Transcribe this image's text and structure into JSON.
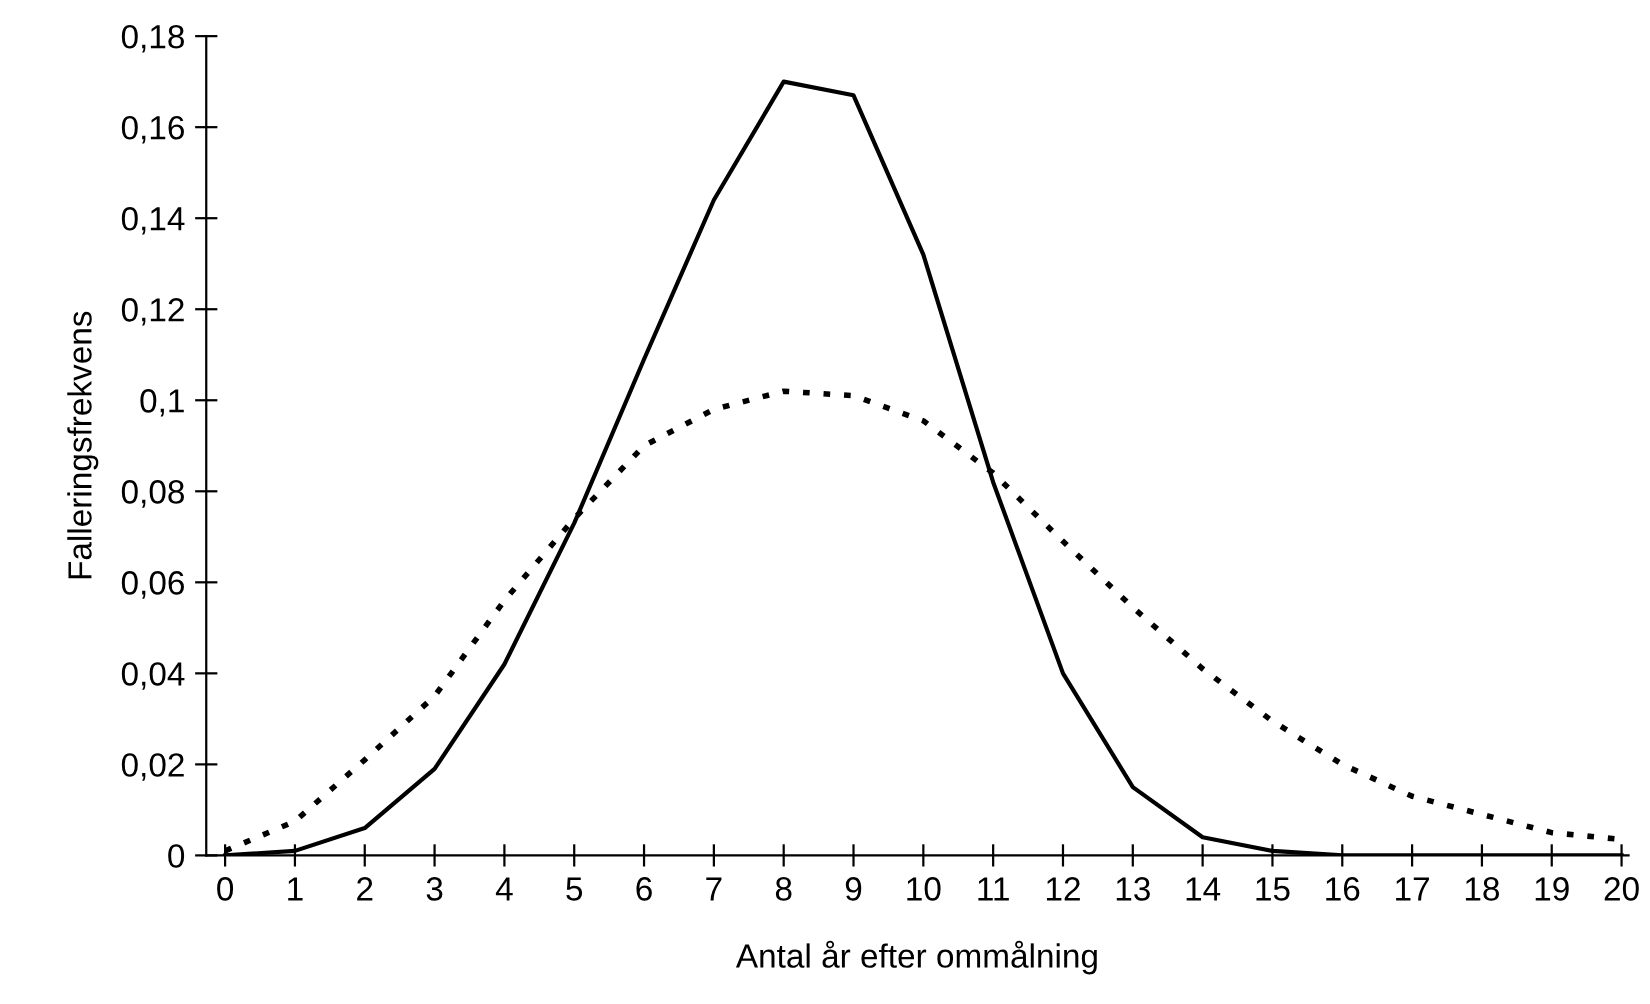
{
  "chart_data": {
    "type": "line",
    "xlabel": "Antal år efter ommålning",
    "ylabel": "Falleringsfrekvens",
    "categories": [
      "0",
      "1",
      "2",
      "3",
      "4",
      "5",
      "6",
      "7",
      "8",
      "9",
      "10",
      "11",
      "12",
      "13",
      "14",
      "15",
      "16",
      "17",
      "18",
      "19",
      "20"
    ],
    "series": [
      {
        "color": "#000000",
        "line_style": "solid",
        "values": [
          0,
          0.001,
          0.006,
          0.019,
          0.042,
          0.073,
          0.109,
          0.144,
          0.17,
          0.167,
          0.132,
          0.082,
          0.04,
          0.015,
          0.004,
          0.001,
          0,
          0,
          0,
          0,
          0
        ]
      },
      {
        "color": "#000000",
        "line_style": "dotted",
        "values": [
          0.001,
          0.0075,
          0.021,
          0.035,
          0.056,
          0.074,
          0.09,
          0.098,
          0.102,
          0.101,
          0.0955,
          0.084,
          0.069,
          0.0545,
          0.041,
          0.0295,
          0.02,
          0.013,
          0.009,
          0.005,
          0.0035
        ]
      }
    ],
    "ylim": [
      0,
      0.18
    ],
    "yticks": [
      0,
      {
        "value": 0.02,
        "label": "0,02"
      },
      {
        "value": 0.04,
        "label": "0,04"
      },
      {
        "value": 0.06,
        "label": "0,06"
      },
      {
        "value": 0.08,
        "label": "0,08"
      },
      {
        "value": 0.1,
        "label": "0,1"
      },
      {
        "value": 0.12,
        "label": "0,12"
      },
      {
        "value": 0.14,
        "label": "0,14"
      },
      {
        "value": 0.16,
        "label": "0,16"
      },
      {
        "value": 0.18,
        "label": "0,18"
      }
    ],
    "grid": false,
    "marker": "none"
  }
}
